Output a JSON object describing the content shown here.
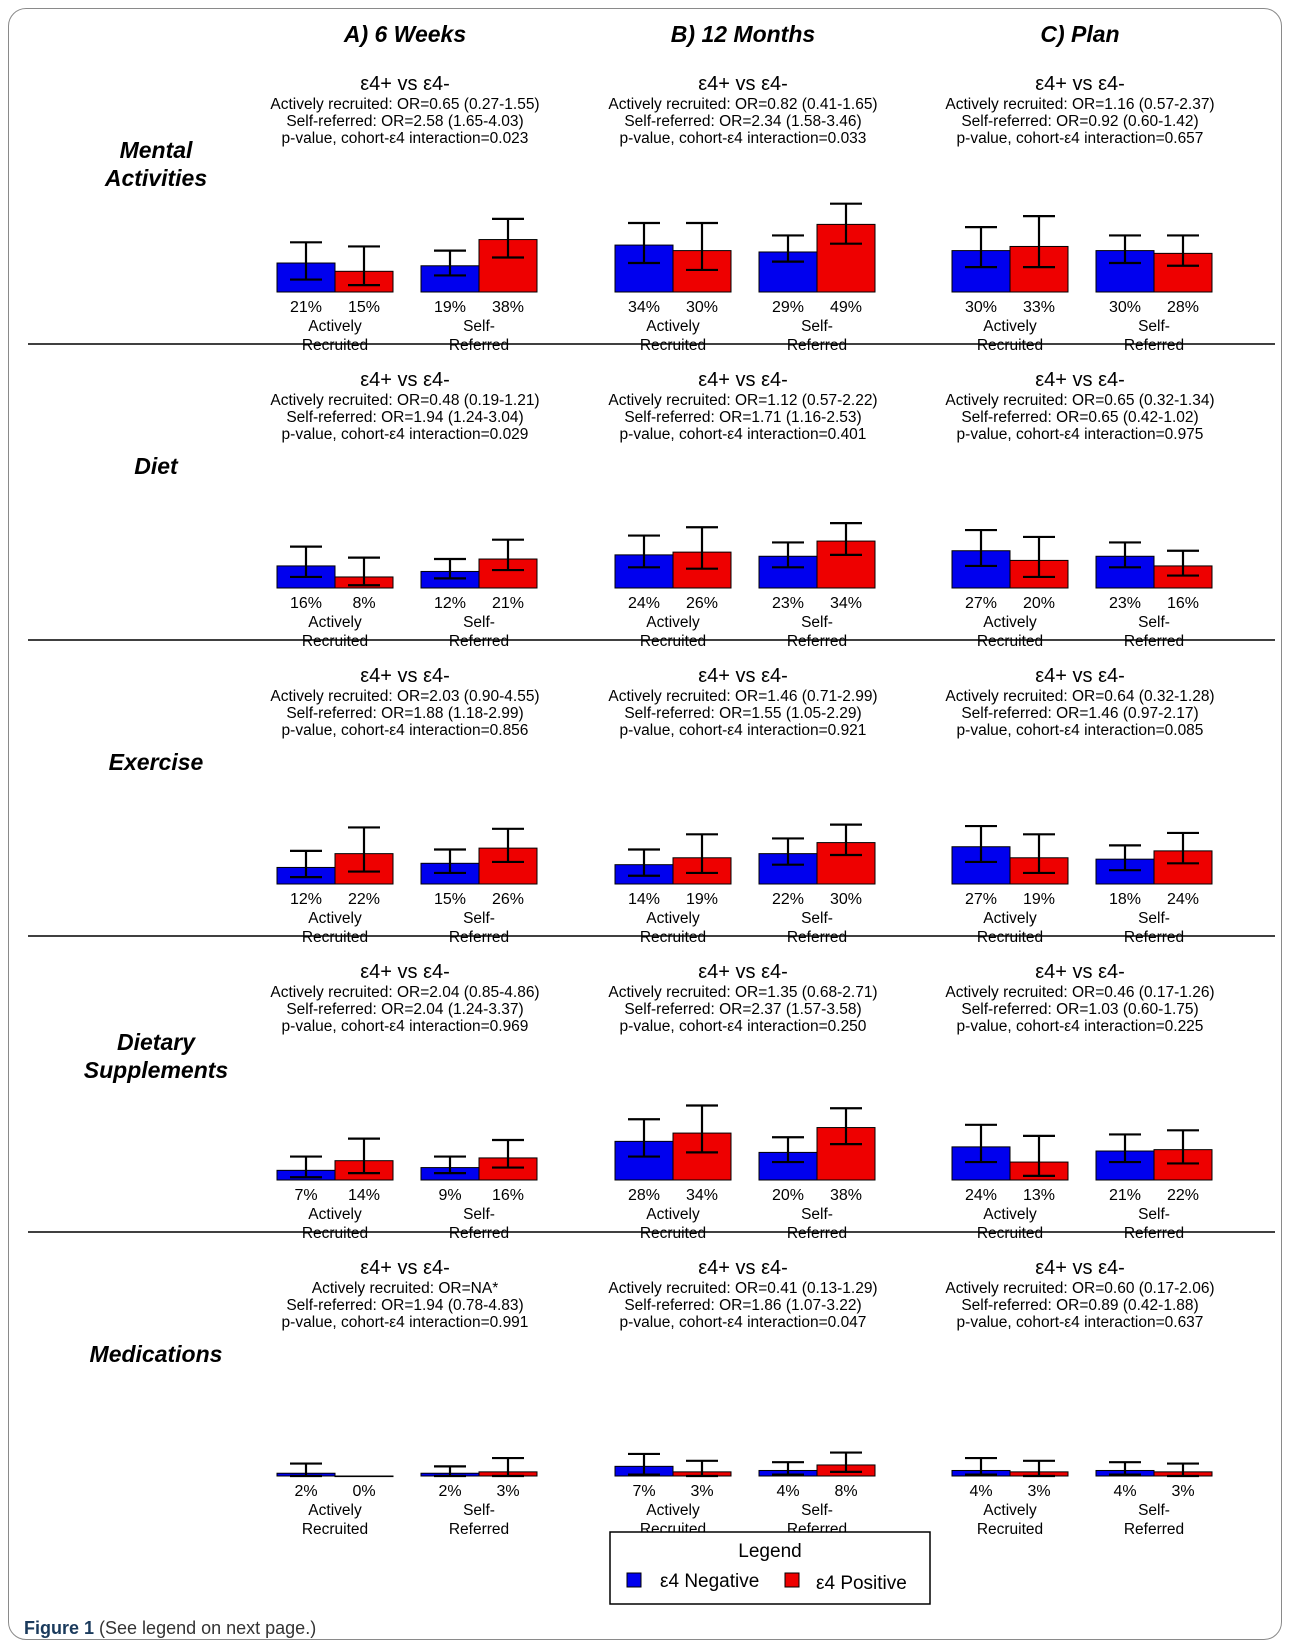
{
  "figure_caption": {
    "label": "Figure 1",
    "text": "(See legend on next page.)"
  },
  "colors": {
    "negative": "#0000ee",
    "positive": "#ee0000",
    "error_bar": "#000000",
    "divider": "#000000"
  },
  "legend": {
    "title": "Legend",
    "negative_label": "ε4 Negative",
    "positive_label": "ε4 Positive"
  },
  "chart_data": {
    "type": "bar",
    "columns": [
      "A) 6 Weeks",
      "B) 12 Months",
      "C) Plan"
    ],
    "rows": [
      "Mental Activities",
      "Diet",
      "Exercise",
      "Dietary Supplements",
      "Medications"
    ],
    "groups": [
      {
        "line1": "Actively",
        "line2": "Recruited"
      },
      {
        "line1": "Self-",
        "line2": "Referred"
      }
    ],
    "series": [
      {
        "name": "ε4 Negative"
      },
      {
        "name": "ε4 Positive"
      }
    ],
    "ylim": [
      0,
      100
    ],
    "panels": [
      [
        {
          "title": "ε4+ vs ε4-",
          "lines": [
            "Actively recruited: OR=0.65 (0.27-1.55)",
            "Self-referred: OR=2.58 (1.65-4.03)",
            "p-value, cohort-ε4 interaction=0.023"
          ],
          "values": [
            [
              21,
              15
            ],
            [
              19,
              38
            ]
          ],
          "pct_labels": [
            [
              "21%",
              "15%"
            ],
            [
              "19%",
              "38%"
            ]
          ],
          "ci": [
            [
              [
                9,
                36
              ],
              [
                5,
                33
              ]
            ],
            [
              [
                12,
                30
              ],
              [
                25,
                53
              ]
            ]
          ]
        },
        {
          "title": "ε4+ vs ε4-",
          "lines": [
            "Actively recruited: OR=0.82 (0.41-1.65)",
            "Self-referred: OR=2.34 (1.58-3.46)",
            "p-value, cohort-ε4 interaction=0.033"
          ],
          "values": [
            [
              34,
              30
            ],
            [
              29,
              49
            ]
          ],
          "pct_labels": [
            [
              "34%",
              "30%"
            ],
            [
              "29%",
              "49%"
            ]
          ],
          "ci": [
            [
              [
                21,
                50
              ],
              [
                16,
                50
              ]
            ],
            [
              [
                22,
                41
              ],
              [
                35,
                64
              ]
            ]
          ]
        },
        {
          "title": "ε4+ vs ε4-",
          "lines": [
            "Actively recruited: OR=1.16 (0.57-2.37)",
            "Self-referred: OR=0.92 (0.60-1.42)",
            "p-value, cohort-ε4 interaction=0.657"
          ],
          "values": [
            [
              30,
              33
            ],
            [
              30,
              28
            ]
          ],
          "pct_labels": [
            [
              "30%",
              "33%"
            ],
            [
              "30%",
              "28%"
            ]
          ],
          "ci": [
            [
              [
                18,
                47
              ],
              [
                18,
                55
              ]
            ],
            [
              [
                21,
                41
              ],
              [
                19,
                41
              ]
            ]
          ]
        }
      ],
      [
        {
          "title": "ε4+ vs ε4-",
          "lines": [
            "Actively recruited: OR=0.48 (0.19-1.21)",
            "Self-referred: OR=1.94 (1.24-3.04)",
            "p-value, cohort-ε4 interaction=0.029"
          ],
          "values": [
            [
              16,
              8
            ],
            [
              12,
              21
            ]
          ],
          "pct_labels": [
            [
              "16%",
              "8%"
            ],
            [
              "12%",
              "21%"
            ]
          ],
          "ci": [
            [
              [
                8,
                30
              ],
              [
                2,
                22
              ]
            ],
            [
              [
                7,
                21
              ],
              [
                13,
                35
              ]
            ]
          ]
        },
        {
          "title": "ε4+ vs ε4-",
          "lines": [
            "Actively recruited: OR=1.12 (0.57-2.22)",
            "Self-referred: OR=1.71 (1.16-2.53)",
            "p-value, cohort-ε4 interaction=0.401"
          ],
          "values": [
            [
              24,
              26
            ],
            [
              23,
              34
            ]
          ],
          "pct_labels": [
            [
              "24%",
              "26%"
            ],
            [
              "23%",
              "34%"
            ]
          ],
          "ci": [
            [
              [
                15,
                38
              ],
              [
                14,
                44
              ]
            ],
            [
              [
                15,
                33
              ],
              [
                24,
                47
              ]
            ]
          ]
        },
        {
          "title": "ε4+ vs ε4-",
          "lines": [
            "Actively recruited: OR=0.65 (0.32-1.34)",
            "Self-referred: OR=0.65 (0.42-1.02)",
            "p-value, cohort-ε4 interaction=0.975"
          ],
          "values": [
            [
              27,
              20
            ],
            [
              23,
              16
            ]
          ],
          "pct_labels": [
            [
              "27%",
              "20%"
            ],
            [
              "23%",
              "16%"
            ]
          ],
          "ci": [
            [
              [
                16,
                42
              ],
              [
                8,
                37
              ]
            ],
            [
              [
                15,
                33
              ],
              [
                9,
                27
              ]
            ]
          ]
        }
      ],
      [
        {
          "title": "ε4+ vs ε4-",
          "lines": [
            "Actively recruited: OR=2.03 (0.90-4.55)",
            "Self-referred: OR=1.88 (1.18-2.99)",
            "p-value, cohort-ε4 interaction=0.856"
          ],
          "values": [
            [
              12,
              22
            ],
            [
              15,
              26
            ]
          ],
          "pct_labels": [
            [
              "12%",
              "22%"
            ],
            [
              "15%",
              "26%"
            ]
          ],
          "ci": [
            [
              [
                5,
                24
              ],
              [
                9,
                41
              ]
            ],
            [
              [
                8,
                25
              ],
              [
                16,
                40
              ]
            ]
          ]
        },
        {
          "title": "ε4+ vs ε4-",
          "lines": [
            "Actively recruited: OR=1.46 (0.71-2.99)",
            "Self-referred: OR=1.55 (1.05-2.29)",
            "p-value, cohort-ε4 interaction=0.921"
          ],
          "values": [
            [
              14,
              19
            ],
            [
              22,
              30
            ]
          ],
          "pct_labels": [
            [
              "14%",
              "19%"
            ],
            [
              "22%",
              "30%"
            ]
          ],
          "ci": [
            [
              [
                6,
                25
              ],
              [
                8,
                36
              ]
            ],
            [
              [
                14,
                33
              ],
              [
                21,
                43
              ]
            ]
          ]
        },
        {
          "title": "ε4+ vs ε4-",
          "lines": [
            "Actively recruited: OR=0.64 (0.32-1.28)",
            "Self-referred: OR=1.46 (0.97-2.17)",
            "p-value, cohort-ε4 interaction=0.085"
          ],
          "values": [
            [
              27,
              19
            ],
            [
              18,
              24
            ]
          ],
          "pct_labels": [
            [
              "27%",
              "19%"
            ],
            [
              "18%",
              "24%"
            ]
          ],
          "ci": [
            [
              [
                16,
                42
              ],
              [
                8,
                36
              ]
            ],
            [
              [
                10,
                28
              ],
              [
                15,
                37
              ]
            ]
          ]
        }
      ],
      [
        {
          "title": "ε4+ vs ε4-",
          "lines": [
            "Actively recruited: OR=2.04 (0.85-4.86)",
            "Self-referred: OR=2.04 (1.24-3.37)",
            "p-value, cohort-ε4 interaction=0.969"
          ],
          "values": [
            [
              7,
              14
            ],
            [
              9,
              16
            ]
          ],
          "pct_labels": [
            [
              "7%",
              "14%"
            ],
            [
              "9%",
              "16%"
            ]
          ],
          "ci": [
            [
              [
                2,
                17
              ],
              [
                5,
                30
              ]
            ],
            [
              [
                5,
                17
              ],
              [
                9,
                29
              ]
            ]
          ]
        },
        {
          "title": "ε4+ vs ε4-",
          "lines": [
            "Actively recruited: OR=1.35 (0.68-2.71)",
            "Self-referred: OR=2.37 (1.57-3.58)",
            "p-value, cohort-ε4 interaction=0.250"
          ],
          "values": [
            [
              28,
              34
            ],
            [
              20,
              38
            ]
          ],
          "pct_labels": [
            [
              "28%",
              "34%"
            ],
            [
              "20%",
              "38%"
            ]
          ],
          "ci": [
            [
              [
                17,
                44
              ],
              [
                20,
                54
              ]
            ],
            [
              [
                13,
                31
              ],
              [
                26,
                52
              ]
            ]
          ]
        },
        {
          "title": "ε4+ vs ε4-",
          "lines": [
            "Actively recruited: OR=0.46 (0.17-1.26)",
            "Self-referred: OR=1.03 (0.60-1.75)",
            "p-value, cohort-ε4 interaction=0.225"
          ],
          "values": [
            [
              24,
              13
            ],
            [
              21,
              22
            ]
          ],
          "pct_labels": [
            [
              "24%",
              "13%"
            ],
            [
              "21%",
              "22%"
            ]
          ],
          "ci": [
            [
              [
                13,
                40
              ],
              [
                3,
                32
              ]
            ],
            [
              [
                13,
                33
              ],
              [
                12,
                36
              ]
            ]
          ]
        }
      ],
      [
        {
          "title": "ε4+ vs ε4-",
          "lines": [
            "Actively recruited: OR=NA*",
            "Self-referred: OR=1.94 (0.78-4.83)",
            "p-value, cohort-ε4 interaction=0.991"
          ],
          "values": [
            [
              2,
              0
            ],
            [
              2,
              3
            ]
          ],
          "pct_labels": [
            [
              "2%",
              "0%"
            ],
            [
              "2%",
              "3%"
            ]
          ],
          "ci": [
            [
              [
                0,
                9
              ],
              null
            ],
            [
              [
                0,
                7
              ],
              [
                0,
                13
              ]
            ]
          ]
        },
        {
          "title": "ε4+ vs ε4-",
          "lines": [
            "Actively recruited: OR=0.41 (0.13-1.29)",
            "Self-referred: OR=1.86 (1.07-3.22)",
            "p-value, cohort-ε4 interaction=0.047"
          ],
          "values": [
            [
              7,
              3
            ],
            [
              4,
              8
            ]
          ],
          "pct_labels": [
            [
              "7%",
              "3%"
            ],
            [
              "4%",
              "8%"
            ]
          ],
          "ci": [
            [
              [
                1,
                16
              ],
              [
                0,
                11
              ]
            ],
            [
              [
                1,
                10
              ],
              [
                3,
                17
              ]
            ]
          ]
        },
        {
          "title": "ε4+ vs ε4-",
          "lines": [
            "Actively recruited: OR=0.60 (0.17-2.06)",
            "Self-referred: OR=0.89 (0.42-1.88)",
            "p-value, cohort-ε4 interaction=0.637"
          ],
          "values": [
            [
              4,
              3
            ],
            [
              4,
              3
            ]
          ],
          "pct_labels": [
            [
              "4%",
              "3%"
            ],
            [
              "4%",
              "3%"
            ]
          ],
          "ci": [
            [
              [
                1,
                13
              ],
              [
                0,
                11
              ]
            ],
            [
              [
                1,
                10
              ],
              [
                0,
                9
              ]
            ]
          ]
        }
      ]
    ]
  }
}
